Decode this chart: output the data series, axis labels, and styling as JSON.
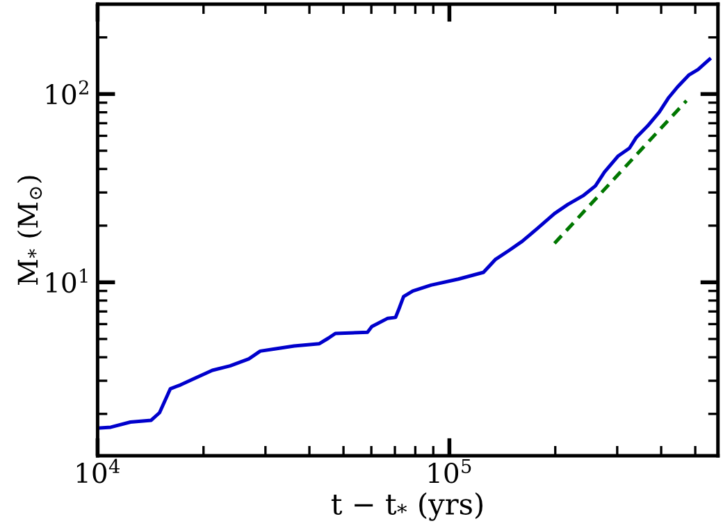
{
  "chart_data": {
    "type": "line",
    "xlabel": "t − t$_{*}$ (yrs)",
    "ylabel": "M$_{*}$ (M$_{⊙}$)",
    "log": "xy",
    "grid": false,
    "legend": false,
    "xlim": [
      10000,
      580000
    ],
    "ylim": [
      1.2,
      300
    ],
    "xticks": [
      {
        "value": 10000,
        "label": "10$^{4}$"
      },
      {
        "value": 100000,
        "label": "10$^{5}$"
      }
    ],
    "yticks": [
      {
        "value": 10,
        "label": "10$^{1}$"
      },
      {
        "value": 100,
        "label": "10$^{2}$"
      }
    ],
    "series": [
      {
        "color": "#0000cc",
        "line_style": "solid",
        "x": [
          10000,
          10900,
          12400,
          14200,
          15000,
          16100,
          17200,
          18800,
          21200,
          23800,
          26900,
          29000,
          32100,
          36200,
          42700,
          45300,
          47400,
          58500,
          60200,
          66800,
          70300,
          72000,
          74100,
          78700,
          88700,
          106000,
          125000,
          135000,
          148000,
          161000,
          176000,
          199000,
          217000,
          241000,
          260000,
          276000,
          302000,
          325000,
          340000,
          366000,
          395000,
          419000,
          445000,
          479000,
          509000,
          549000
        ],
        "values": [
          1.68,
          1.7,
          1.81,
          1.85,
          2.03,
          2.72,
          2.85,
          3.08,
          3.41,
          3.6,
          3.92,
          4.31,
          4.44,
          4.59,
          4.72,
          5.05,
          5.35,
          5.43,
          5.82,
          6.44,
          6.51,
          7.28,
          8.4,
          8.99,
          9.66,
          10.4,
          11.3,
          13.2,
          14.8,
          16.5,
          19.0,
          23.2,
          25.9,
          29.0,
          32.5,
          38.5,
          46.9,
          51.6,
          58.9,
          67.7,
          80.2,
          95.1,
          109,
          126,
          135,
          153
        ]
      },
      {
        "color": "#007700",
        "line_style": "dashed",
        "x": [
          199000,
          472000
        ],
        "values": [
          16.1,
          92.2
        ]
      }
    ]
  }
}
